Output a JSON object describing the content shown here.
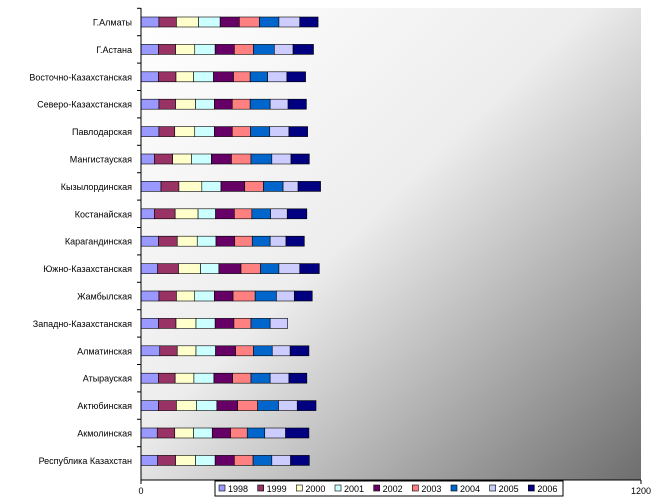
{
  "chart_data": {
    "type": "bar",
    "orientation": "horizontal",
    "stacked": true,
    "title": "",
    "xlabel": "",
    "ylabel": "",
    "xlim": [
      0,
      1200
    ],
    "x_ticks": [
      "0",
      "1200"
    ],
    "grid": false,
    "legend_position": "bottom",
    "categories": [
      "Г.Алматы",
      "Г.Астана",
      "Восточно-Казахстанская",
      "Северо-Казахстанская",
      "Павлодарская",
      "Мангистауская",
      "Кызылординская",
      "Костанайская",
      "Карагандинская",
      "Южно-Казахстанская",
      "Жамбылская",
      "Западно-Казахстанская",
      "Алматинская",
      "Атырауская",
      "Актюбинская",
      "Акмолинская",
      "Республика Казахстан"
    ],
    "series": [
      {
        "name": "1998",
        "color": "#9999FF",
        "pattern": "solid",
        "values": [
          43,
          42,
          42,
          43,
          43,
          32,
          48,
          32,
          42,
          40,
          43,
          42,
          45,
          42,
          42,
          39,
          40
        ]
      },
      {
        "name": "1999",
        "color": "#993366",
        "pattern": "solid",
        "values": [
          42,
          41,
          42,
          40,
          38,
          44,
          43,
          50,
          45,
          50,
          42,
          42,
          42,
          40,
          43,
          42,
          43
        ]
      },
      {
        "name": "2000",
        "color": "#FFFFCC",
        "pattern": "solid",
        "values": [
          53,
          46,
          42,
          48,
          48,
          45,
          55,
          55,
          48,
          53,
          43,
          48,
          45,
          45,
          48,
          45,
          48
        ]
      },
      {
        "name": "2001",
        "color": "#CCFFFF",
        "pattern": "solid",
        "values": [
          52,
          49,
          48,
          45,
          47,
          48,
          46,
          42,
          45,
          44,
          48,
          46,
          47,
          48,
          49,
          45,
          47
        ]
      },
      {
        "name": "2002",
        "color": "#660066",
        "pattern": "solid",
        "values": [
          46,
          46,
          48,
          43,
          43,
          48,
          57,
          45,
          45,
          53,
          45,
          45,
          48,
          45,
          50,
          44,
          46
        ]
      },
      {
        "name": "2003",
        "color": "#FF8080",
        "pattern": "solid",
        "values": [
          48,
          46,
          40,
          43,
          44,
          47,
          45,
          42,
          42,
          47,
          53,
          41,
          43,
          44,
          48,
          40,
          45
        ]
      },
      {
        "name": "2004",
        "color": "#0066CC",
        "pattern": "solid",
        "values": [
          47,
          50,
          42,
          48,
          46,
          50,
          47,
          45,
          43,
          44,
          51,
          46,
          45,
          46,
          50,
          42,
          45
        ]
      },
      {
        "name": "2005",
        "color": "#CCCCFF",
        "pattern": "solid",
        "values": [
          50,
          45,
          46,
          43,
          46,
          46,
          36,
          40,
          38,
          50,
          43,
          42,
          43,
          45,
          45,
          50,
          45
        ]
      },
      {
        "name": "2006",
        "color": "#000080",
        "pattern": "solid",
        "values": [
          44,
          49,
          45,
          44,
          45,
          44,
          54,
          47,
          44,
          47,
          43,
          0,
          45,
          43,
          45,
          56,
          45
        ]
      }
    ]
  }
}
